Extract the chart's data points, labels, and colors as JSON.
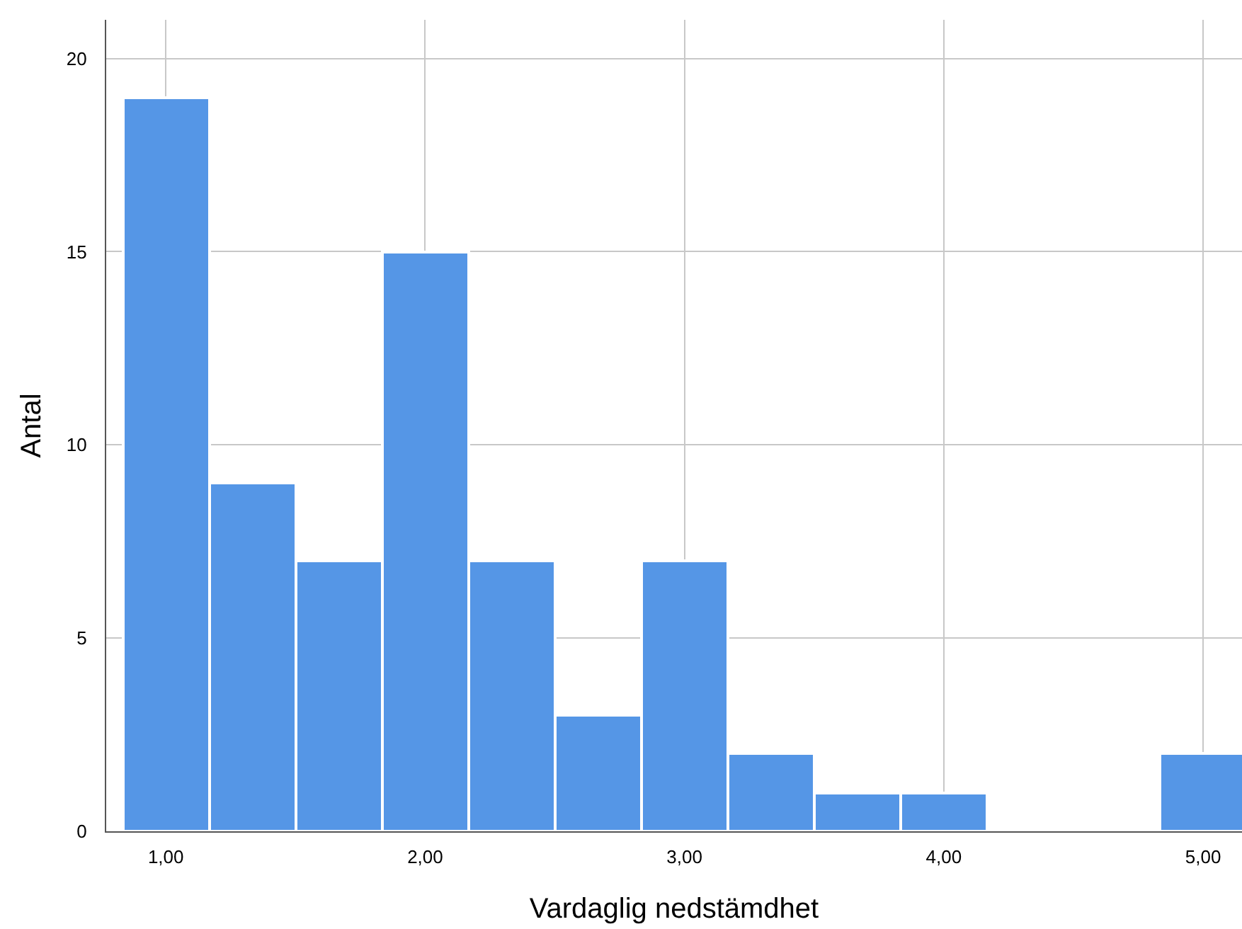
{
  "chart_data": {
    "type": "histogram",
    "xlabel": "Vardaglig nedstämdhet",
    "ylabel": "Antal",
    "bins": [
      0.833,
      1.167,
      1.5,
      1.833,
      2.167,
      2.5,
      2.833,
      3.167,
      3.5,
      3.833,
      4.167,
      4.5,
      4.833,
      5.167
    ],
    "values": [
      19,
      9,
      7,
      15,
      7,
      3,
      7,
      2,
      1,
      1,
      0,
      0,
      2
    ],
    "color": "#5596e6",
    "xlim": [
      0.77,
      5.15
    ],
    "xticks": [
      {
        "value": 1,
        "label": "1,00"
      },
      {
        "value": 2,
        "label": "2,00"
      },
      {
        "value": 3,
        "label": "3,00"
      },
      {
        "value": 4,
        "label": "4,00"
      },
      {
        "value": 5,
        "label": "5,00"
      }
    ],
    "ylim": [
      0,
      21
    ],
    "yticks": [
      0,
      5,
      10,
      15,
      20
    ],
    "grid": true
  }
}
